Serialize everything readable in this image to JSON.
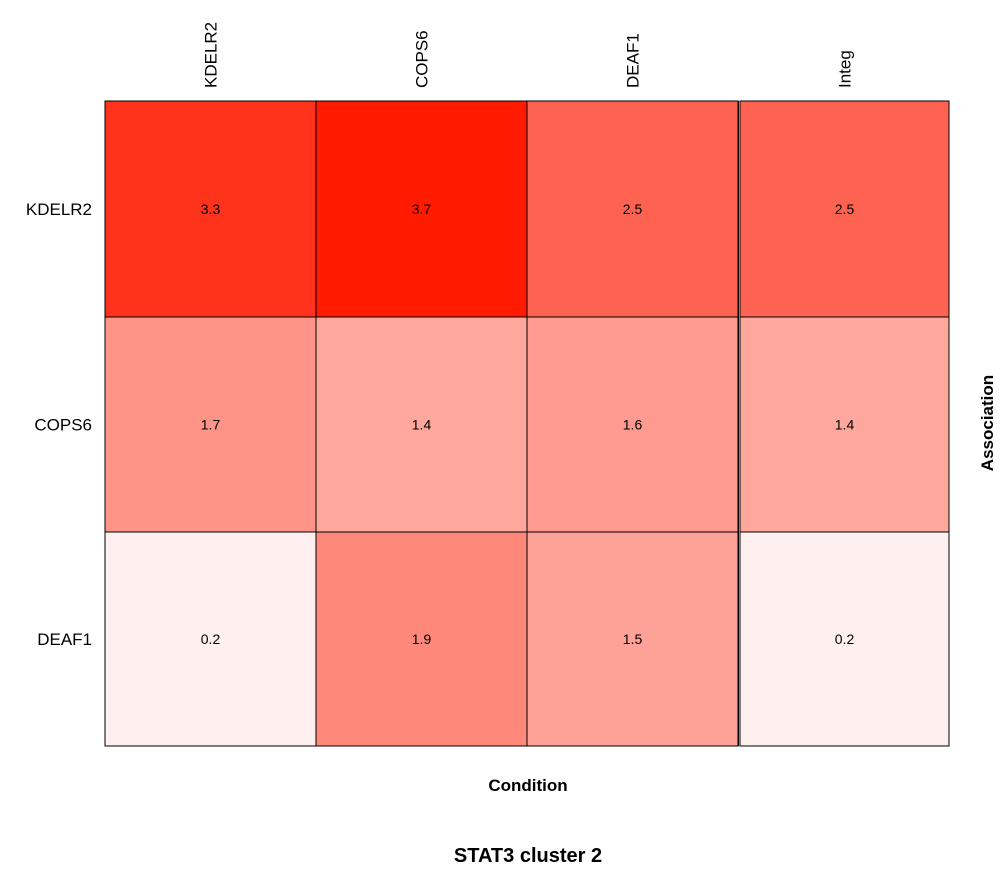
{
  "chart_data": {
    "type": "heatmap",
    "title": "STAT3 cluster 2",
    "xlabel": "Condition",
    "ylabel": "Association",
    "columns": [
      "KDELR2",
      "COPS6",
      "DEAF1",
      "Integ"
    ],
    "rows": [
      "KDELR2",
      "COPS6",
      "DEAF1"
    ],
    "values": [
      [
        3.3,
        3.7,
        2.5,
        2.5
      ],
      [
        1.7,
        1.4,
        1.6,
        1.4
      ],
      [
        0.2,
        1.9,
        1.5,
        0.2
      ]
    ],
    "color_scale": {
      "low": "#fdf0ee",
      "high": "#ff1a00"
    },
    "separator_after_column": 3
  }
}
